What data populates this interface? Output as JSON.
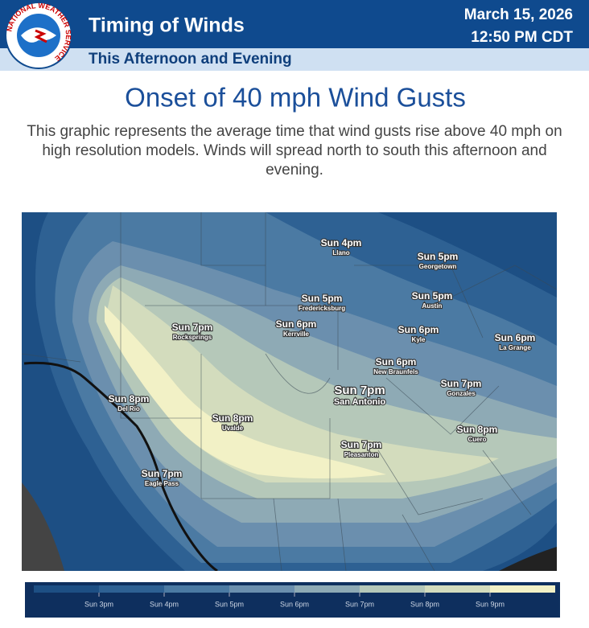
{
  "header": {
    "title": "Timing of Winds",
    "subtitle": "This Afternoon and Evening",
    "date": "March 15, 2026",
    "time": "12:50 PM CDT",
    "logo_text": "NATIONAL WEATHER SERVICE"
  },
  "headline": "Onset of 40 mph Wind Gusts",
  "description": "This graphic represents the average time that wind gusts rise above 40 mph on high resolution models. Winds will spread north to south this afternoon and evening.",
  "map": {
    "labels": [
      {
        "time": "Sun 4pm",
        "place": "Llano"
      },
      {
        "time": "Sun 5pm",
        "place": "Georgetown"
      },
      {
        "time": "Sun 5pm",
        "place": "Fredericksburg"
      },
      {
        "time": "Sun 5pm",
        "place": "Austin"
      },
      {
        "time": "Sun 7pm",
        "place": "Rocksprings"
      },
      {
        "time": "Sun 6pm",
        "place": "Kerrville"
      },
      {
        "time": "Sun 6pm",
        "place": "Kyle"
      },
      {
        "time": "Sun 6pm",
        "place": "La Grange"
      },
      {
        "time": "Sun 6pm",
        "place": "New Braunfels"
      },
      {
        "time": "Sun 7pm",
        "place": "San Antonio"
      },
      {
        "time": "Sun 7pm",
        "place": "Gonzales"
      },
      {
        "time": "Sun 8pm",
        "place": "Del Rio"
      },
      {
        "time": "Sun 8pm",
        "place": "Uvalde"
      },
      {
        "time": "Sun 8pm",
        "place": "Cuero"
      },
      {
        "time": "Sun 7pm",
        "place": "Pleasanton"
      },
      {
        "time": "Sun 7pm",
        "place": "Eagle Pass"
      }
    ]
  },
  "legend": {
    "labels": [
      "Sun 3pm",
      "Sun 4pm",
      "Sun 5pm",
      "Sun 6pm",
      "Sun 7pm",
      "Sun 8pm",
      "Sun 9pm"
    ],
    "colors": [
      "#1d4f84",
      "#2e6193",
      "#4b7aa3",
      "#6b8fae",
      "#8eaab5",
      "#b5c8b9",
      "#d3dcbd",
      "#f2f1c6"
    ]
  }
}
